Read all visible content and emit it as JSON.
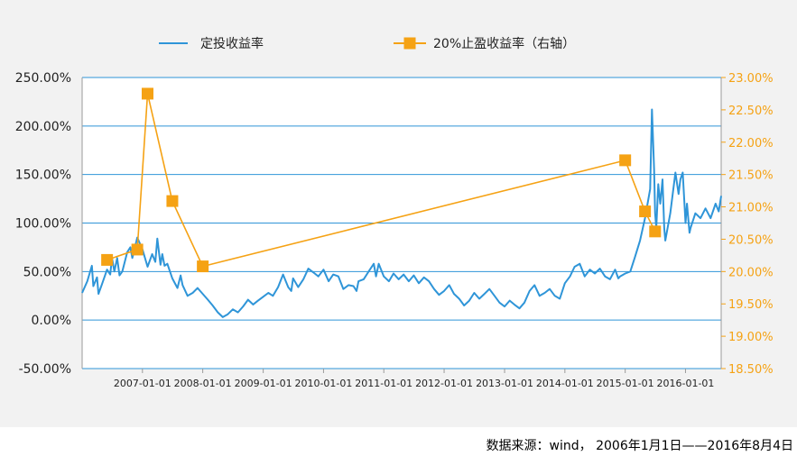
{
  "chart_data": {
    "type": "line",
    "title": "",
    "legend": [
      {
        "name": "定投收益率",
        "color": "#2f95d8",
        "marker": "line"
      },
      {
        "name": "20%止盈收益率（右轴）",
        "color": "#f5a214",
        "marker": "square"
      }
    ],
    "x_tick_labels": [
      "2007-01-01",
      "2008-01-01",
      "2009-01-01",
      "2010-01-01",
      "2011-01-01",
      "2012-01-01",
      "2013-01-01",
      "2014-01-01",
      "2015-01-01",
      "2016-01-01"
    ],
    "x_range": [
      "2006-01-01",
      "2016-08-04"
    ],
    "left_axis": {
      "range": [
        -0.5,
        2.5
      ],
      "ticks": [
        2.5,
        2.0,
        1.5,
        1.0,
        0.5,
        0.0,
        -0.5
      ],
      "tick_labels": [
        "250.00%",
        "200.00%",
        "150.00%",
        "100.00%",
        "50.00%",
        "0.00%",
        "-50.00%"
      ]
    },
    "right_axis": {
      "range": [
        0.185,
        0.23
      ],
      "ticks": [
        0.23,
        0.225,
        0.22,
        0.215,
        0.21,
        0.205,
        0.2,
        0.195,
        0.19,
        0.185
      ],
      "tick_labels": [
        "23.00%",
        "22.50%",
        "22.00%",
        "21.50%",
        "21.00%",
        "20.50%",
        "20.00%",
        "19.50%",
        "19.00%",
        "18.50%"
      ]
    },
    "series": [
      {
        "name": "定投收益率",
        "axis": "left",
        "color": "#2f95d8",
        "points": [
          [
            "2006-01-01",
            0.28
          ],
          [
            "2006-02-01",
            0.4
          ],
          [
            "2006-03-01",
            0.56
          ],
          [
            "2006-03-10",
            0.35
          ],
          [
            "2006-04-01",
            0.44
          ],
          [
            "2006-04-10",
            0.27
          ],
          [
            "2006-05-01",
            0.37
          ],
          [
            "2006-06-01",
            0.52
          ],
          [
            "2006-06-20",
            0.47
          ],
          [
            "2006-07-01",
            0.64
          ],
          [
            "2006-07-15",
            0.5
          ],
          [
            "2006-08-01",
            0.64
          ],
          [
            "2006-08-15",
            0.46
          ],
          [
            "2006-09-01",
            0.5
          ],
          [
            "2006-10-01",
            0.7
          ],
          [
            "2006-10-20",
            0.75
          ],
          [
            "2006-11-01",
            0.64
          ],
          [
            "2006-12-01",
            0.85
          ],
          [
            "2007-01-01",
            0.73
          ],
          [
            "2007-02-01",
            0.55
          ],
          [
            "2007-03-01",
            0.68
          ],
          [
            "2007-03-20",
            0.6
          ],
          [
            "2007-04-01",
            0.84
          ],
          [
            "2007-04-20",
            0.57
          ],
          [
            "2007-05-01",
            0.68
          ],
          [
            "2007-05-15",
            0.56
          ],
          [
            "2007-06-01",
            0.58
          ],
          [
            "2007-07-01",
            0.43
          ],
          [
            "2007-08-01",
            0.33
          ],
          [
            "2007-08-20",
            0.46
          ],
          [
            "2007-09-01",
            0.36
          ],
          [
            "2007-10-01",
            0.25
          ],
          [
            "2007-11-01",
            0.28
          ],
          [
            "2007-12-01",
            0.33
          ],
          [
            "2008-01-01",
            0.27
          ],
          [
            "2008-02-01",
            0.21
          ],
          [
            "2008-03-01",
            0.15
          ],
          [
            "2008-04-01",
            0.08
          ],
          [
            "2008-05-01",
            0.03
          ],
          [
            "2008-06-01",
            0.06
          ],
          [
            "2008-07-01",
            0.11
          ],
          [
            "2008-08-01",
            0.08
          ],
          [
            "2008-09-01",
            0.14
          ],
          [
            "2008-10-01",
            0.21
          ],
          [
            "2008-11-01",
            0.16
          ],
          [
            "2008-12-01",
            0.2
          ],
          [
            "2009-01-01",
            0.24
          ],
          [
            "2009-02-01",
            0.28
          ],
          [
            "2009-03-01",
            0.25
          ],
          [
            "2009-04-01",
            0.34
          ],
          [
            "2009-05-01",
            0.47
          ],
          [
            "2009-06-01",
            0.34
          ],
          [
            "2009-06-20",
            0.3
          ],
          [
            "2009-07-01",
            0.43
          ],
          [
            "2009-08-01",
            0.34
          ],
          [
            "2009-09-01",
            0.42
          ],
          [
            "2009-10-01",
            0.53
          ],
          [
            "2009-11-01",
            0.49
          ],
          [
            "2009-12-01",
            0.45
          ],
          [
            "2010-01-01",
            0.52
          ],
          [
            "2010-02-01",
            0.4
          ],
          [
            "2010-03-01",
            0.47
          ],
          [
            "2010-04-01",
            0.45
          ],
          [
            "2010-05-01",
            0.32
          ],
          [
            "2010-06-01",
            0.36
          ],
          [
            "2010-07-01",
            0.35
          ],
          [
            "2010-07-20",
            0.3
          ],
          [
            "2010-08-01",
            0.4
          ],
          [
            "2010-09-01",
            0.42
          ],
          [
            "2010-10-01",
            0.5
          ],
          [
            "2010-11-01",
            0.58
          ],
          [
            "2010-11-15",
            0.45
          ],
          [
            "2010-12-01",
            0.58
          ],
          [
            "2011-01-01",
            0.45
          ],
          [
            "2011-02-01",
            0.4
          ],
          [
            "2011-03-01",
            0.48
          ],
          [
            "2011-04-01",
            0.42
          ],
          [
            "2011-05-01",
            0.47
          ],
          [
            "2011-06-01",
            0.4
          ],
          [
            "2011-07-01",
            0.46
          ],
          [
            "2011-08-01",
            0.38
          ],
          [
            "2011-09-01",
            0.44
          ],
          [
            "2011-10-01",
            0.4
          ],
          [
            "2011-11-01",
            0.32
          ],
          [
            "2011-12-01",
            0.26
          ],
          [
            "2012-01-01",
            0.3
          ],
          [
            "2012-02-01",
            0.36
          ],
          [
            "2012-03-01",
            0.27
          ],
          [
            "2012-04-01",
            0.22
          ],
          [
            "2012-05-01",
            0.15
          ],
          [
            "2012-06-01",
            0.2
          ],
          [
            "2012-07-01",
            0.28
          ],
          [
            "2012-08-01",
            0.22
          ],
          [
            "2012-09-01",
            0.27
          ],
          [
            "2012-10-01",
            0.32
          ],
          [
            "2012-11-01",
            0.25
          ],
          [
            "2012-12-01",
            0.18
          ],
          [
            "2013-01-01",
            0.14
          ],
          [
            "2013-02-01",
            0.2
          ],
          [
            "2013-03-01",
            0.16
          ],
          [
            "2013-04-01",
            0.12
          ],
          [
            "2013-05-01",
            0.18
          ],
          [
            "2013-06-01",
            0.3
          ],
          [
            "2013-07-01",
            0.36
          ],
          [
            "2013-08-01",
            0.25
          ],
          [
            "2013-09-01",
            0.28
          ],
          [
            "2013-10-01",
            0.32
          ],
          [
            "2013-11-01",
            0.25
          ],
          [
            "2013-12-01",
            0.22
          ],
          [
            "2014-01-01",
            0.38
          ],
          [
            "2014-02-01",
            0.45
          ],
          [
            "2014-03-01",
            0.55
          ],
          [
            "2014-04-01",
            0.58
          ],
          [
            "2014-05-01",
            0.45
          ],
          [
            "2014-06-01",
            0.52
          ],
          [
            "2014-07-01",
            0.48
          ],
          [
            "2014-08-01",
            0.53
          ],
          [
            "2014-09-01",
            0.45
          ],
          [
            "2014-10-01",
            0.42
          ],
          [
            "2014-11-01",
            0.52
          ],
          [
            "2014-11-20",
            0.43
          ],
          [
            "2014-12-01",
            0.45
          ],
          [
            "2015-01-01",
            0.48
          ],
          [
            "2015-02-01",
            0.5
          ],
          [
            "2015-03-01",
            0.65
          ],
          [
            "2015-04-01",
            0.82
          ],
          [
            "2015-05-01",
            1.05
          ],
          [
            "2015-06-01",
            1.35
          ],
          [
            "2015-06-12",
            2.17
          ],
          [
            "2015-06-25",
            1.55
          ],
          [
            "2015-07-01",
            1.1
          ],
          [
            "2015-07-08",
            0.95
          ],
          [
            "2015-07-20",
            1.4
          ],
          [
            "2015-08-01",
            1.2
          ],
          [
            "2015-08-15",
            1.45
          ],
          [
            "2015-08-25",
            0.95
          ],
          [
            "2015-09-01",
            0.82
          ],
          [
            "2015-10-01",
            1.1
          ],
          [
            "2015-11-01",
            1.52
          ],
          [
            "2015-11-20",
            1.3
          ],
          [
            "2015-12-01",
            1.45
          ],
          [
            "2015-12-15",
            1.52
          ],
          [
            "2016-01-01",
            1.0
          ],
          [
            "2016-01-10",
            1.2
          ],
          [
            "2016-01-25",
            0.9
          ],
          [
            "2016-02-01",
            0.95
          ],
          [
            "2016-03-01",
            1.1
          ],
          [
            "2016-04-01",
            1.05
          ],
          [
            "2016-05-01",
            1.15
          ],
          [
            "2016-06-01",
            1.05
          ],
          [
            "2016-07-01",
            1.2
          ],
          [
            "2016-07-20",
            1.12
          ],
          [
            "2016-08-04",
            1.28
          ]
        ]
      },
      {
        "name": "20%止盈收益率（右轴）",
        "axis": "right",
        "color": "#f5a214",
        "points": [
          [
            "2006-06-01",
            0.2018
          ],
          [
            "2006-12-01",
            0.2034
          ],
          [
            "2007-02-01",
            0.2275
          ],
          [
            "2007-07-01",
            0.2109
          ],
          [
            "2008-01-01",
            0.2008
          ],
          [
            "2015-01-01",
            0.2172
          ],
          [
            "2015-05-01",
            0.2093
          ],
          [
            "2015-07-01",
            0.2062
          ]
        ]
      }
    ]
  },
  "source_note": "数据来源：wind，  2006年1月1日——2016年8月4日"
}
